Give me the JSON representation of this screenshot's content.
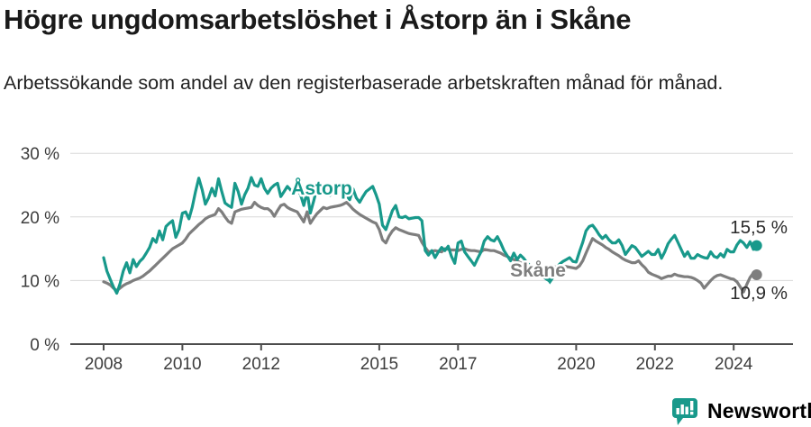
{
  "branding": {
    "name": "Newsworthy"
  },
  "colors": {
    "astorp": "#18998b",
    "skane": "#7e7e7e",
    "grid": "#d8d8d8",
    "axis": "#4d4d4d",
    "tick_text": "#3d3d3d",
    "end_label_text": "#2b2b2b",
    "title_text": "#1a1a1a",
    "brand_teal": "#18998b"
  },
  "chart_data": {
    "type": "line",
    "title": "Högre ungdomsarbetslöshet i Åstorp än i Skåne",
    "subtitle": "Arbetssökande som andel av den registerbaserade arbetskraften månad för månad.",
    "unit": "%",
    "frequency": "monthly",
    "start": "2008-01",
    "end": "2024-08",
    "ylim": [
      0,
      30
    ],
    "ytick_values": [
      0,
      10,
      20,
      30
    ],
    "ytick_labels": [
      "0 %",
      "10 %",
      "20 %",
      "30 %"
    ],
    "xtick_years": [
      2008,
      2010,
      2012,
      2015,
      2017,
      2020,
      2022,
      2024
    ],
    "grid": true,
    "legend": "inline-labels",
    "series": [
      {
        "name": "Åstorp",
        "color": "#18998b",
        "end_label": "15,5 %",
        "last_value": 15.5,
        "values": [
          13.6,
          11.5,
          10.2,
          9.0,
          8.0,
          9.5,
          11.5,
          12.8,
          11.2,
          13.3,
          12.2,
          13.0,
          13.5,
          14.3,
          15.2,
          16.6,
          16.0,
          17.8,
          16.4,
          18.5,
          19.0,
          19.4,
          16.8,
          18.0,
          20.6,
          20.8,
          19.7,
          21.5,
          24.0,
          26.1,
          24.3,
          22.0,
          23.0,
          24.5,
          23.3,
          26.0,
          24.0,
          22.2,
          21.8,
          21.5,
          25.3,
          24.0,
          22.0,
          23.5,
          24.5,
          26.2,
          25.0,
          24.8,
          26.0,
          24.5,
          23.7,
          24.5,
          25.0,
          25.3,
          23.2,
          24.0,
          24.8,
          24.2,
          23.6,
          24.4,
          23.5,
          21.8,
          24.0,
          20.6,
          22.5,
          24.5,
          23.5,
          24.5,
          25.0,
          23.4,
          24.0,
          24.6,
          25.0,
          24.2,
          23.4,
          22.7,
          24.4,
          23.0,
          22.3,
          23.2,
          24.0,
          24.4,
          24.8,
          23.5,
          22.0,
          18.7,
          18.0,
          19.5,
          21.0,
          21.8,
          20.0,
          19.9,
          20.1,
          19.7,
          19.8,
          19.9,
          19.9,
          19.4,
          14.7,
          14.0,
          14.7,
          13.6,
          14.5,
          15.2,
          14.7,
          15.4,
          13.8,
          12.7,
          15.9,
          16.2,
          14.5,
          13.8,
          13.1,
          12.4,
          13.5,
          14.5,
          16.2,
          16.9,
          16.4,
          16.2,
          16.9,
          15.9,
          14.7,
          13.9,
          13.1,
          14.3,
          13.3,
          14.0,
          13.5,
          12.8,
          12.3,
          11.8,
          11.4,
          11.0,
          10.6,
          10.2,
          9.9,
          11.0,
          12.0,
          12.6,
          13.0,
          13.3,
          13.6,
          13.0,
          12.9,
          14.5,
          16.0,
          17.8,
          18.5,
          18.7,
          18.0,
          17.2,
          16.6,
          17.1,
          16.4,
          15.9,
          15.9,
          16.4,
          15.5,
          14.1,
          14.8,
          15.5,
          15.2,
          14.5,
          13.8,
          14.2,
          14.6,
          14.1,
          14.1,
          14.9,
          13.5,
          14.5,
          15.8,
          16.5,
          17.1,
          16.0,
          14.9,
          13.8,
          14.5,
          13.5,
          13.5,
          14.1,
          13.8,
          13.6,
          13.5,
          14.5,
          13.8,
          13.6,
          14.2,
          13.7,
          14.9,
          14.5,
          14.5,
          15.6,
          16.3,
          15.9,
          15.2,
          16.1,
          14.9,
          15.5
        ]
      },
      {
        "name": "Skåne",
        "color": "#7e7e7e",
        "end_label": "10,9 %",
        "last_value": 10.9,
        "values": [
          9.8,
          9.6,
          9.3,
          8.8,
          8.4,
          8.8,
          9.2,
          9.5,
          9.7,
          10.0,
          10.2,
          10.4,
          10.7,
          11.1,
          11.5,
          12.0,
          12.5,
          13.0,
          13.5,
          14.0,
          14.5,
          15.0,
          15.3,
          15.6,
          15.9,
          16.5,
          17.3,
          17.8,
          18.3,
          18.8,
          19.2,
          19.7,
          20.0,
          20.2,
          20.4,
          21.3,
          20.8,
          20.0,
          19.3,
          19.0,
          20.8,
          21.0,
          21.2,
          21.3,
          21.4,
          21.5,
          22.3,
          21.8,
          21.5,
          21.3,
          21.3,
          20.9,
          20.1,
          21.0,
          21.8,
          22.0,
          21.5,
          21.2,
          21.0,
          20.8,
          20.0,
          19.2,
          20.8,
          19.0,
          19.8,
          20.5,
          21.0,
          21.5,
          21.3,
          21.5,
          21.6,
          21.7,
          21.8,
          22.0,
          22.3,
          21.8,
          21.2,
          20.8,
          20.4,
          20.1,
          19.8,
          19.5,
          19.2,
          19.0,
          18.0,
          16.4,
          15.9,
          17.0,
          17.8,
          18.3,
          18.0,
          17.8,
          17.6,
          17.4,
          17.3,
          17.2,
          17.1,
          16.0,
          15.2,
          14.5,
          14.6,
          14.7,
          14.6,
          14.5,
          15.0,
          14.9,
          14.8,
          14.8,
          14.7,
          14.9,
          15.0,
          14.8,
          14.7,
          14.7,
          14.6,
          14.5,
          14.9,
          14.8,
          14.7,
          14.7,
          14.5,
          14.3,
          14.0,
          13.8,
          13.5,
          13.3,
          13.1,
          12.8,
          12.6,
          12.4,
          12.3,
          12.2,
          12.2,
          12.1,
          12.0,
          12.0,
          12.1,
          12.2,
          12.1,
          12.2,
          12.2,
          12.2,
          12.1,
          12.0,
          11.9,
          12.3,
          13.1,
          14.3,
          15.5,
          16.6,
          16.2,
          15.9,
          15.6,
          15.2,
          14.9,
          14.5,
          14.2,
          13.9,
          13.5,
          13.2,
          13.0,
          12.8,
          12.8,
          13.1,
          12.5,
          12.0,
          11.3,
          11.0,
          10.8,
          10.6,
          10.3,
          10.5,
          10.7,
          10.7,
          11.0,
          10.8,
          10.7,
          10.6,
          10.6,
          10.5,
          10.3,
          10.0,
          9.6,
          8.8,
          9.4,
          10.0,
          10.5,
          10.8,
          10.9,
          10.7,
          10.5,
          10.3,
          10.2,
          9.8,
          9.0,
          8.2,
          9.4,
          10.5,
          11.2,
          10.9
        ]
      }
    ],
    "annotations": {
      "low_point": {
        "series": "Åstorp",
        "date": "2019-05",
        "value": 9.9,
        "marker": "triangle-down"
      }
    }
  }
}
